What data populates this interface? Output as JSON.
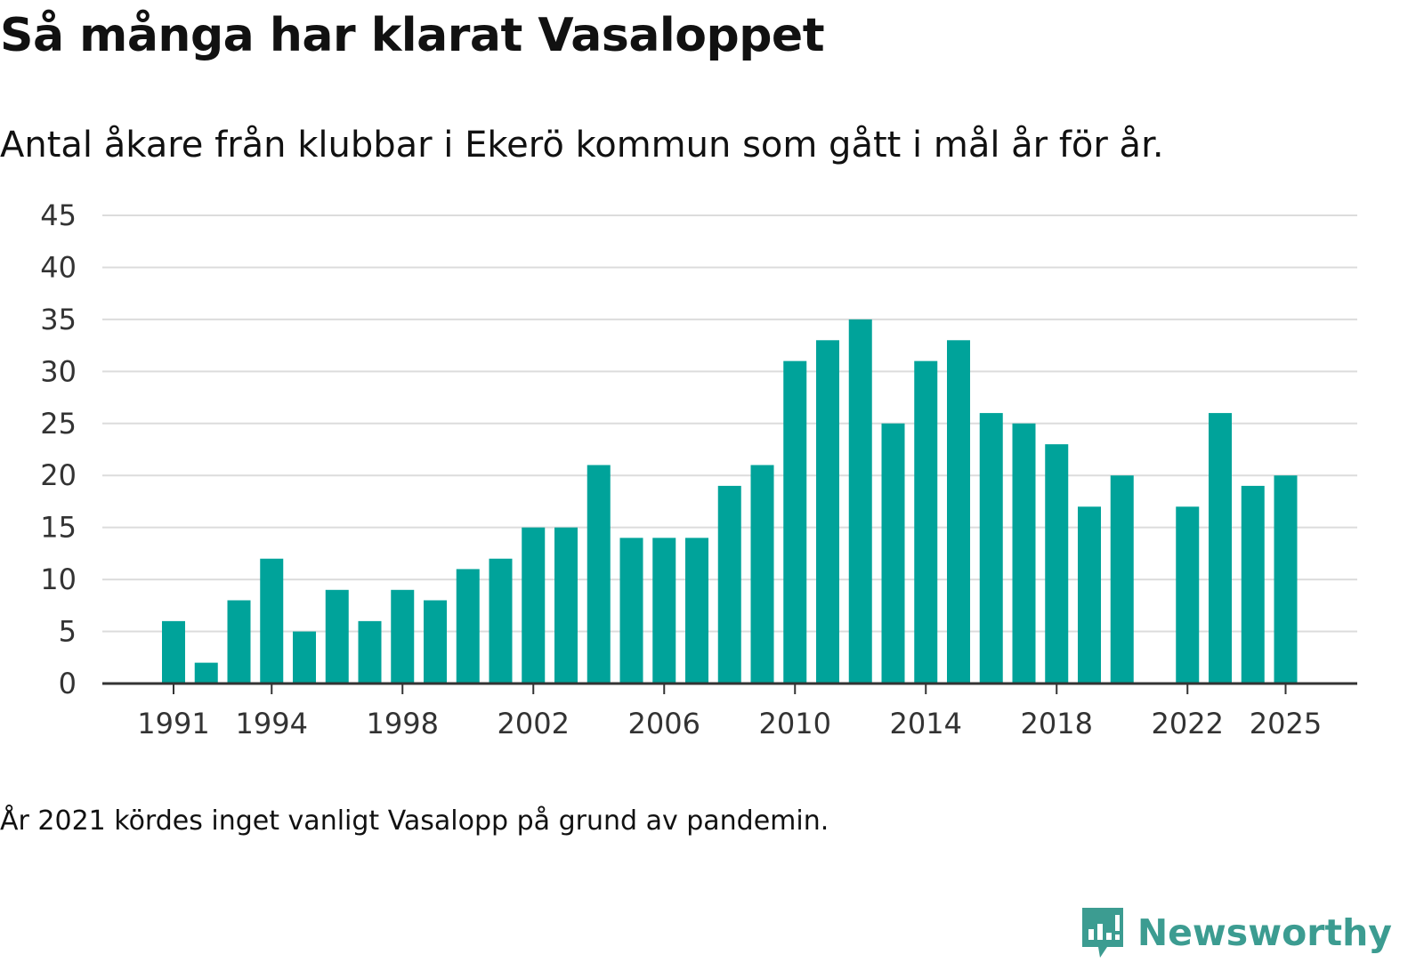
{
  "colors": {
    "bar": "#00a39a",
    "axis": "#333333",
    "grid": "#dcdcdc",
    "brand": "#3c9c91"
  },
  "header": {
    "title": "Så många har klarat Vasaloppet",
    "subtitle": "Antal åkare från klubbar i Ekerö kommun som gått i mål år för år."
  },
  "chart_data": {
    "type": "bar",
    "title": "Så många har klarat Vasaloppet",
    "subtitle": "Antal åkare från klubbar i Ekerö kommun som gått i mål år för år.",
    "xlabel": "",
    "ylabel": "",
    "categories": [
      1991,
      1992,
      1993,
      1994,
      1995,
      1996,
      1997,
      1998,
      1999,
      2000,
      2001,
      2002,
      2003,
      2004,
      2005,
      2006,
      2007,
      2008,
      2009,
      2010,
      2011,
      2012,
      2013,
      2014,
      2015,
      2016,
      2017,
      2018,
      2019,
      2020,
      2021,
      2022,
      2023,
      2024,
      2025
    ],
    "values": [
      6,
      2,
      8,
      12,
      5,
      9,
      6,
      9,
      8,
      11,
      12,
      15,
      15,
      21,
      14,
      14,
      14,
      19,
      21,
      31,
      33,
      35,
      25,
      31,
      33,
      26,
      25,
      23,
      17,
      20,
      null,
      17,
      26,
      19,
      20
    ],
    "x_tick_labels": [
      "1991",
      "1994",
      "1998",
      "2002",
      "2006",
      "2010",
      "2014",
      "2018",
      "2022",
      "2025"
    ],
    "y_ticks": [
      0,
      5,
      10,
      15,
      20,
      25,
      30,
      35,
      40,
      45
    ],
    "ylim": [
      0,
      45
    ],
    "grid": true,
    "legend": "none"
  },
  "footnote": "År 2021 kördes inget vanligt Vasalopp på grund av pandemin.",
  "brand": {
    "name": "Newsworthy",
    "icon": "newsworthy-logo-icon"
  }
}
